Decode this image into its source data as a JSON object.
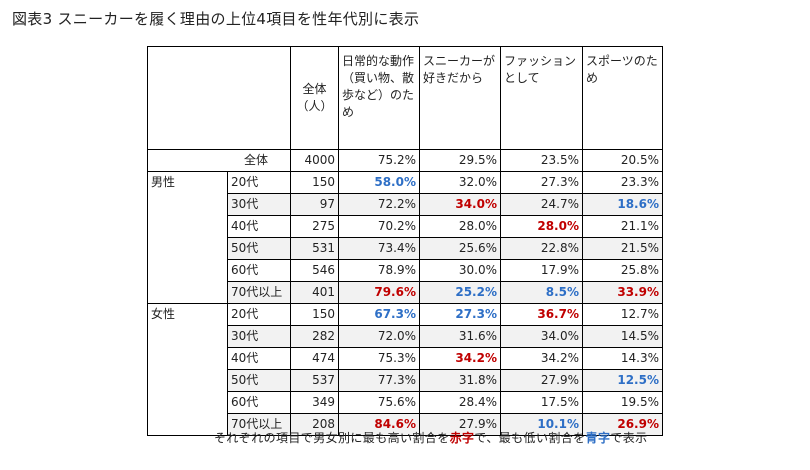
{
  "title": "図表3 スニーカーを履く理由の上位4項目を性年代別に表示",
  "colors": {
    "highest": "#c00000",
    "lowest": "#2e6fc6",
    "shade": "#f2f2f2"
  },
  "header": {
    "total": "全体（人）",
    "columns": [
      "日常的な動作（買い物、散歩など）のため",
      "スニーカーが好きだから",
      "ファッションとして",
      "スポーツのため"
    ]
  },
  "overall": {
    "label": "全体",
    "n": "4000",
    "values": [
      "75.2%",
      "29.5%",
      "23.5%",
      "20.5%"
    ]
  },
  "groups": [
    {
      "gender": "男性",
      "rows": [
        {
          "age": "20代",
          "n": "150",
          "values": [
            "58.0%",
            "32.0%",
            "27.3%",
            "23.3%"
          ],
          "styles": [
            "blue",
            "",
            "",
            ""
          ]
        },
        {
          "age": "30代",
          "n": "97",
          "values": [
            "72.2%",
            "34.0%",
            "24.7%",
            "18.6%"
          ],
          "styles": [
            "",
            "red",
            "",
            "blue"
          ]
        },
        {
          "age": "40代",
          "n": "275",
          "values": [
            "70.2%",
            "28.0%",
            "28.0%",
            "21.1%"
          ],
          "styles": [
            "",
            "",
            "red",
            ""
          ]
        },
        {
          "age": "50代",
          "n": "531",
          "values": [
            "73.4%",
            "25.6%",
            "22.8%",
            "21.5%"
          ],
          "styles": [
            "",
            "",
            "",
            ""
          ]
        },
        {
          "age": "60代",
          "n": "546",
          "values": [
            "78.9%",
            "30.0%",
            "17.9%",
            "25.8%"
          ],
          "styles": [
            "",
            "",
            "",
            ""
          ]
        },
        {
          "age": "70代以上",
          "n": "401",
          "values": [
            "79.6%",
            "25.2%",
            "8.5%",
            "33.9%"
          ],
          "styles": [
            "red",
            "blue",
            "blue",
            "red"
          ]
        }
      ]
    },
    {
      "gender": "女性",
      "rows": [
        {
          "age": "20代",
          "n": "150",
          "values": [
            "67.3%",
            "27.3%",
            "36.7%",
            "12.7%"
          ],
          "styles": [
            "blue",
            "blue",
            "red",
            ""
          ]
        },
        {
          "age": "30代",
          "n": "282",
          "values": [
            "72.0%",
            "31.6%",
            "34.0%",
            "14.5%"
          ],
          "styles": [
            "",
            "",
            "",
            ""
          ]
        },
        {
          "age": "40代",
          "n": "474",
          "values": [
            "75.3%",
            "34.2%",
            "34.2%",
            "14.3%"
          ],
          "styles": [
            "",
            "red",
            "",
            ""
          ]
        },
        {
          "age": "50代",
          "n": "537",
          "values": [
            "77.3%",
            "31.8%",
            "27.9%",
            "12.5%"
          ],
          "styles": [
            "",
            "",
            "",
            "blue"
          ]
        },
        {
          "age": "60代",
          "n": "349",
          "values": [
            "75.6%",
            "28.4%",
            "17.5%",
            "19.5%"
          ],
          "styles": [
            "",
            "",
            "",
            ""
          ]
        },
        {
          "age": "70代以上",
          "n": "208",
          "values": [
            "84.6%",
            "27.9%",
            "10.1%",
            "26.9%"
          ],
          "styles": [
            "red",
            "",
            "blue",
            "red"
          ]
        }
      ]
    }
  ],
  "note": {
    "part1": "それぞれの項目で男女別に最も高い割合を",
    "red_word": "赤字",
    "part2": "で、最も低い割合を",
    "blue_word": "青字",
    "part3": "で表示"
  }
}
